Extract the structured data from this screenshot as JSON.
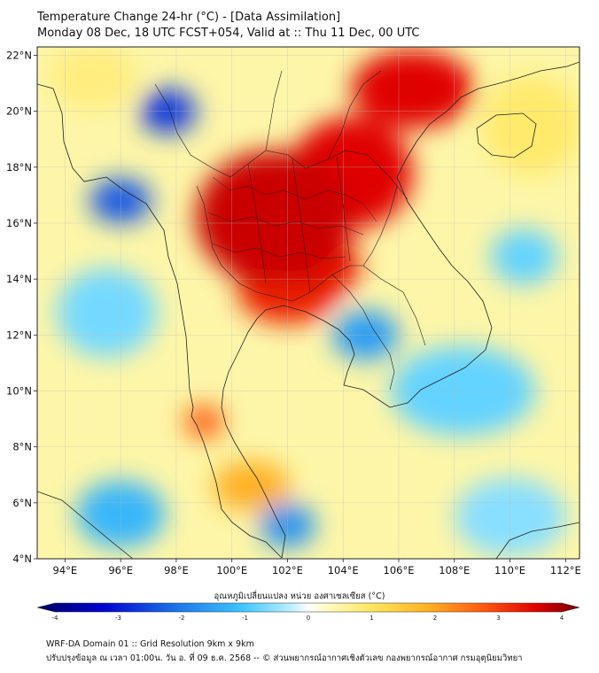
{
  "title": {
    "line1": "Temperature Change 24-hr (°C) - [Data Assimilation]",
    "line2": "Monday 08 Dec, 18 UTC FCST+054, Valid at :: Thu 11 Dec, 00 UTC"
  },
  "map": {
    "lat_labels": [
      "22°N",
      "20°N",
      "18°N",
      "16°N",
      "14°N",
      "12°N",
      "10°N",
      "8°N",
      "6°N",
      "4°N"
    ],
    "lon_labels": [
      "94°E",
      "96°E",
      "98°E",
      "100°E",
      "102°E",
      "104°E",
      "106°E",
      "108°E",
      "110°E",
      "112°E"
    ],
    "lat_range": [
      4,
      22.3
    ],
    "lon_range": [
      93,
      112.5
    ],
    "field_blobs": [
      {
        "lon": 101.5,
        "lat": 16.2,
        "rx": 2.8,
        "ry": 2.4,
        "value": 3.2
      },
      {
        "lon": 104.3,
        "lat": 17.8,
        "rx": 2.2,
        "ry": 2.0,
        "value": 3.0
      },
      {
        "lon": 106.5,
        "lat": 20.8,
        "rx": 2.2,
        "ry": 1.4,
        "value": 3.0
      },
      {
        "lon": 102.0,
        "lat": 13.6,
        "rx": 1.8,
        "ry": 1.2,
        "value": 2.8
      },
      {
        "lon": 103.2,
        "lat": 14.5,
        "rx": 1.4,
        "ry": 1.2,
        "value": 2.9
      },
      {
        "lon": 99.0,
        "lat": 8.9,
        "rx": 0.7,
        "ry": 0.6,
        "value": 2.5
      },
      {
        "lon": 100.7,
        "lat": 6.6,
        "rx": 1.4,
        "ry": 0.9,
        "value": 1.8
      },
      {
        "lon": 97.7,
        "lat": 20.0,
        "rx": 1.0,
        "ry": 0.8,
        "value": -2.5
      },
      {
        "lon": 96.0,
        "lat": 16.8,
        "rx": 1.1,
        "ry": 0.8,
        "value": -2.2
      },
      {
        "lon": 104.8,
        "lat": 12.0,
        "rx": 1.2,
        "ry": 0.9,
        "value": -1.5
      },
      {
        "lon": 102.0,
        "lat": 5.2,
        "rx": 1.0,
        "ry": 0.8,
        "value": -1.6
      },
      {
        "lon": 96.0,
        "lat": 5.6,
        "rx": 1.6,
        "ry": 1.2,
        "value": -1.2
      },
      {
        "lon": 95.5,
        "lat": 12.8,
        "rx": 1.8,
        "ry": 1.6,
        "value": -0.7
      },
      {
        "lon": 108.3,
        "lat": 10.0,
        "rx": 2.6,
        "ry": 1.6,
        "value": -0.8
      },
      {
        "lon": 110.5,
        "lat": 14.8,
        "rx": 1.2,
        "ry": 1.0,
        "value": -0.8
      },
      {
        "lon": 110.0,
        "lat": 5.5,
        "rx": 2.0,
        "ry": 1.4,
        "value": -0.6
      },
      {
        "lon": 95.0,
        "lat": 21.2,
        "rx": 1.6,
        "ry": 1.2,
        "value": 0.8
      },
      {
        "lon": 110.8,
        "lat": 19.5,
        "rx": 1.8,
        "ry": 1.8,
        "value": 0.9
      }
    ]
  },
  "colorbar": {
    "title": "อุณหภูมิเปลี่ยนแปลง หน่วย องศาเซลเซียส (°C)",
    "ticks": [
      "-4",
      "-3",
      "-2",
      "-1",
      "0",
      "1",
      "2",
      "3",
      "4"
    ],
    "range": [
      -4,
      4
    ]
  },
  "footer": {
    "line1": "WRF-DA Domain 01 :: Grid Resolution 9km x 9km",
    "line2": "ปรับปรุงข้อมูล ณ เวลา 01:00น. วัน อ. ที่ 09 ธ.ค. 2568 -- © ส่วนพยากรณ์อากาศเชิงตัวเลข กองพยากรณ์อากาศ กรมอุตุนิยมวิทยา"
  }
}
